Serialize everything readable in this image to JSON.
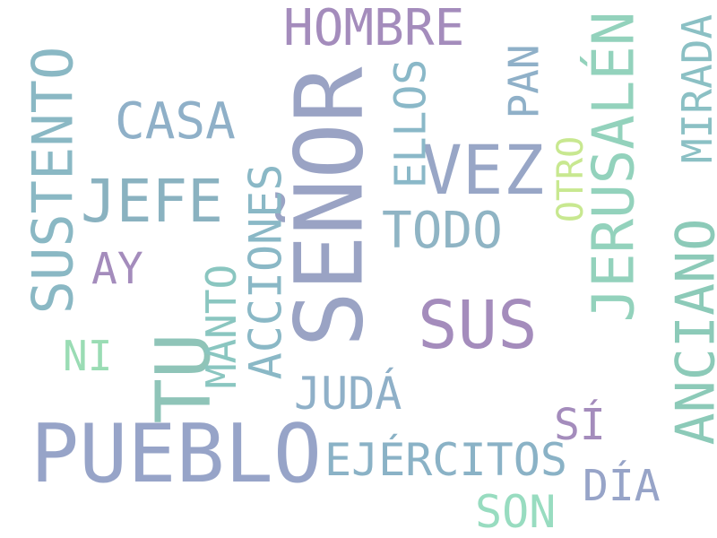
{
  "words": {
    "senor": {
      "text": "SEÑOR",
      "color": "#9aa3c4"
    },
    "pueblo": {
      "text": "PUEBLO",
      "color": "#97a4c8"
    },
    "sus": {
      "text": "SUS",
      "color": "#a48cbc"
    },
    "tu": {
      "text": "TU",
      "color": "#8fc4b8"
    },
    "jerusalen": {
      "text": "JERUSALÉN",
      "color": "#93d2bc"
    },
    "vez": {
      "text": "VEZ",
      "color": "#98a6c6"
    },
    "hombre": {
      "text": "HOMBRE",
      "color": "#a48cbc"
    },
    "jefe": {
      "text": "JEFE",
      "color": "#8ab2c0"
    },
    "sustento": {
      "text": "SUSTENTO",
      "color": "#8ab8c4"
    },
    "anciano": {
      "text": "ANCIANO",
      "color": "#8ccab8"
    },
    "casa": {
      "text": "CASA",
      "color": "#8fb0c8"
    },
    "todo": {
      "text": "TODO",
      "color": "#8fb4c4"
    },
    "acciones": {
      "text": "ACCIONES",
      "color": "#8ab8c6"
    },
    "ejercitos": {
      "text": "EJÉRCITOS",
      "color": "#8ab2c6"
    },
    "manto": {
      "text": "MANTO",
      "color": "#8ac6c0"
    },
    "mirada": {
      "text": "MIRADA",
      "color": "#8bc0c4"
    },
    "ellos": {
      "text": "ELLOS",
      "color": "#8ab8c8"
    },
    "juda": {
      "text": "JUDÁ",
      "color": "#8fb0c8"
    },
    "pan": {
      "text": "PAN",
      "color": "#8fb0c8"
    },
    "dia": {
      "text": "DÍA",
      "color": "#97a4c8"
    },
    "ay": {
      "text": "AY",
      "color": "#a48cbc"
    },
    "son": {
      "text": "SON",
      "color": "#98dcc0"
    },
    "si": {
      "text": "SÍ",
      "color": "#a48cbc"
    },
    "otro": {
      "text": "OTRO",
      "color": "#c8e890"
    },
    "ni": {
      "text": "NI",
      "color": "#9adcb4"
    }
  }
}
